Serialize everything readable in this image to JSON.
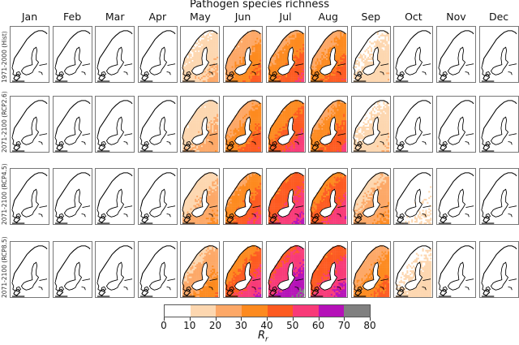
{
  "chart_data": {
    "type": "heatmap",
    "title": "Pathogen species richness",
    "columns": [
      "Jan",
      "Feb",
      "Mar",
      "Apr",
      "May",
      "Jun",
      "Jul",
      "Aug",
      "Sep",
      "Oct",
      "Nov",
      "Dec"
    ],
    "rows": [
      "1971-2000 (Hist)",
      "2071-2100 (RCP2.6)",
      "2071-2100 (RCP4.5)",
      "2071-2100 (RCP8.5)"
    ],
    "peak_richness": [
      [
        0,
        0,
        0,
        0,
        25,
        48,
        55,
        52,
        20,
        0,
        0,
        0
      ],
      [
        0,
        0,
        0,
        0,
        30,
        52,
        60,
        55,
        22,
        5,
        0,
        0
      ],
      [
        0,
        0,
        0,
        0,
        35,
        58,
        65,
        62,
        35,
        12,
        0,
        0
      ],
      [
        0,
        0,
        0,
        5,
        42,
        65,
        75,
        68,
        48,
        18,
        0,
        0
      ]
    ],
    "min_richness_north": [
      [
        0,
        0,
        0,
        0,
        0,
        5,
        10,
        8,
        0,
        0,
        0,
        0
      ],
      [
        0,
        0,
        0,
        0,
        0,
        8,
        15,
        10,
        0,
        0,
        0,
        0
      ],
      [
        0,
        0,
        0,
        0,
        0,
        10,
        25,
        20,
        5,
        0,
        0,
        0
      ],
      [
        0,
        0,
        0,
        0,
        2,
        15,
        30,
        25,
        8,
        0,
        0,
        0
      ]
    ],
    "colorbar": {
      "label": "R",
      "label_sub": "r",
      "ticks": [
        "0",
        "10",
        "20",
        "30",
        "40",
        "50",
        "60",
        "70",
        "80"
      ],
      "range": [
        0,
        80
      ],
      "bins": [
        {
          "from": 0,
          "to": 10,
          "color": "#ffffff"
        },
        {
          "from": 10,
          "to": 20,
          "color": "#fdd7b0"
        },
        {
          "from": 20,
          "to": 30,
          "color": "#fda867"
        },
        {
          "from": 30,
          "to": 40,
          "color": "#fd8a1f"
        },
        {
          "from": 40,
          "to": 50,
          "color": "#fd5a20"
        },
        {
          "from": 50,
          "to": 60,
          "color": "#f83a78"
        },
        {
          "from": 60,
          "to": 70,
          "color": "#b511b8"
        },
        {
          "from": 70,
          "to": 80,
          "color": "#808080"
        }
      ]
    }
  }
}
